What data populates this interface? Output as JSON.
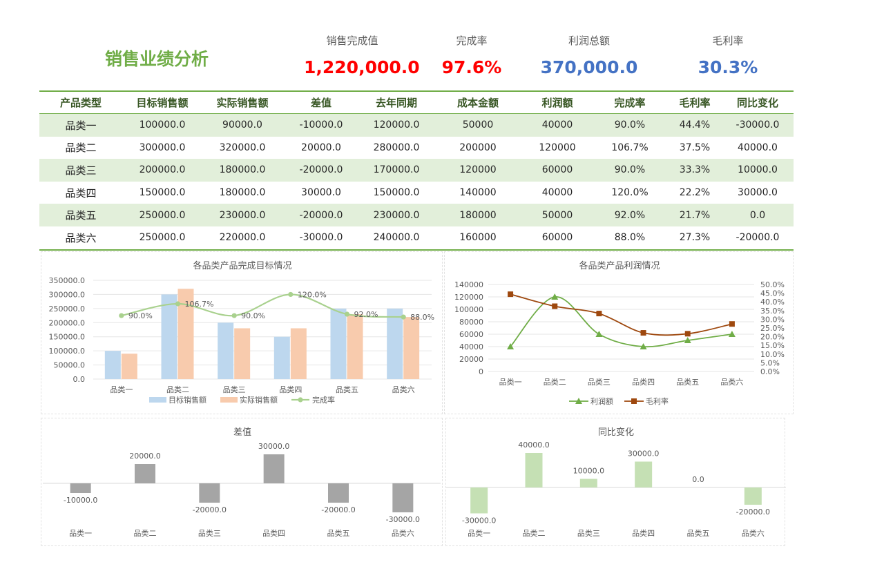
{
  "header": {
    "title": "销售业绩分析",
    "kpis": [
      {
        "label": "销售完成值",
        "value": "1,220,000.0",
        "color": "#FF0000"
      },
      {
        "label": "完成率",
        "value": "97.6%",
        "color": "#FF0000"
      },
      {
        "label": "利润总额",
        "value": "370,000.0",
        "color": "#4472C4"
      },
      {
        "label": "毛利率",
        "value": "30.3%",
        "color": "#4472C4"
      }
    ]
  },
  "table": {
    "columns": [
      "产品类型",
      "目标销售额",
      "实际销售额",
      "差值",
      "去年同期",
      "成本金额",
      "利润额",
      "完成率",
      "毛利率",
      "同比变化"
    ],
    "rows": [
      [
        "品类一",
        "100000.0",
        "90000.0",
        "-10000.0",
        "120000.0",
        "50000",
        "40000",
        "90.0%",
        "44.4%",
        "-30000.0"
      ],
      [
        "品类二",
        "300000.0",
        "320000.0",
        "20000.0",
        "280000.0",
        "200000",
        "120000",
        "106.7%",
        "37.5%",
        "40000.0"
      ],
      [
        "品类三",
        "200000.0",
        "180000.0",
        "-20000.0",
        "170000.0",
        "120000",
        "60000",
        "90.0%",
        "33.3%",
        "10000.0"
      ],
      [
        "品类四",
        "150000.0",
        "180000.0",
        "30000.0",
        "150000.0",
        "140000",
        "40000",
        "120.0%",
        "22.2%",
        "30000.0"
      ],
      [
        "品类五",
        "250000.0",
        "230000.0",
        "-20000.0",
        "230000.0",
        "180000",
        "50000",
        "92.0%",
        "21.7%",
        "0.0"
      ],
      [
        "品类六",
        "250000.0",
        "220000.0",
        "-30000.0",
        "240000.0",
        "160000",
        "60000",
        "88.0%",
        "27.3%",
        "-20000.0"
      ]
    ]
  },
  "chart_data": [
    {
      "type": "bar",
      "title": "各品类产品完成目标情况",
      "categories": [
        "品类一",
        "品类二",
        "品类三",
        "品类四",
        "品类五",
        "品类六"
      ],
      "series": [
        {
          "name": "目标销售额",
          "type": "bar",
          "values": [
            100000,
            300000,
            200000,
            150000,
            250000,
            250000
          ],
          "color": "#BDD7EE"
        },
        {
          "name": "实际销售额",
          "type": "bar",
          "values": [
            90000,
            320000,
            180000,
            180000,
            230000,
            220000
          ],
          "color": "#F8CBAD"
        },
        {
          "name": "完成率",
          "type": "line",
          "axis": "secondary",
          "values": [
            0.9,
            1.067,
            0.9,
            1.2,
            0.92,
            0.88
          ],
          "labels": [
            "90.0%",
            "106.7%",
            "90.0%",
            "120.0%",
            "92.0%",
            "88.0%"
          ],
          "color": "#A9D18E"
        }
      ],
      "ylim": [
        0,
        350000
      ],
      "yticks": [
        "350000.0",
        "300000.0",
        "250000.0",
        "200000.0",
        "150000.0",
        "100000.0",
        "50000.0",
        "0.0"
      ],
      "legend": "bottom"
    },
    {
      "type": "line",
      "title": "各品类产品利润情况",
      "categories": [
        "品类一",
        "品类二",
        "品类三",
        "品类四",
        "品类五",
        "品类六"
      ],
      "series": [
        {
          "name": "利润额",
          "values": [
            40000,
            120000,
            60000,
            40000,
            50000,
            60000
          ],
          "color": "#70AD47",
          "marker": "triangle"
        },
        {
          "name": "毛利率",
          "axis": "secondary",
          "values": [
            0.444,
            0.375,
            0.333,
            0.222,
            0.217,
            0.273
          ],
          "color": "#9E480E",
          "marker": "square"
        }
      ],
      "ylim": [
        0,
        140000
      ],
      "yticks": [
        "140000",
        "120000",
        "100000",
        "80000",
        "60000",
        "40000",
        "20000",
        "0"
      ],
      "y2lim": [
        0,
        0.5
      ],
      "y2ticks": [
        "50.0%",
        "45.0%",
        "40.0%",
        "35.0%",
        "30.0%",
        "25.0%",
        "20.0%",
        "15.0%",
        "10.0%",
        "5.0%",
        "0.0%"
      ],
      "legend": "bottom"
    },
    {
      "type": "bar",
      "title": "差值",
      "categories": [
        "品类一",
        "品类二",
        "品类三",
        "品类四",
        "品类五",
        "品类六"
      ],
      "values": [
        -10000,
        20000,
        -20000,
        30000,
        -20000,
        -30000
      ],
      "labels": [
        "-10000.0",
        "20000.0",
        "-20000.0",
        "30000.0",
        "-20000.0",
        "-30000.0"
      ],
      "color": "#A5A5A5"
    },
    {
      "type": "bar",
      "title": "同比变化",
      "categories": [
        "品类一",
        "品类二",
        "品类三",
        "品类四",
        "品类五",
        "品类六"
      ],
      "values": [
        -30000,
        40000,
        10000,
        30000,
        0,
        -20000
      ],
      "labels": [
        "-30000.0",
        "40000.0",
        "10000.0",
        "30000.0",
        "0.0",
        "-20000.0"
      ],
      "color": "#C5E0B4"
    }
  ]
}
